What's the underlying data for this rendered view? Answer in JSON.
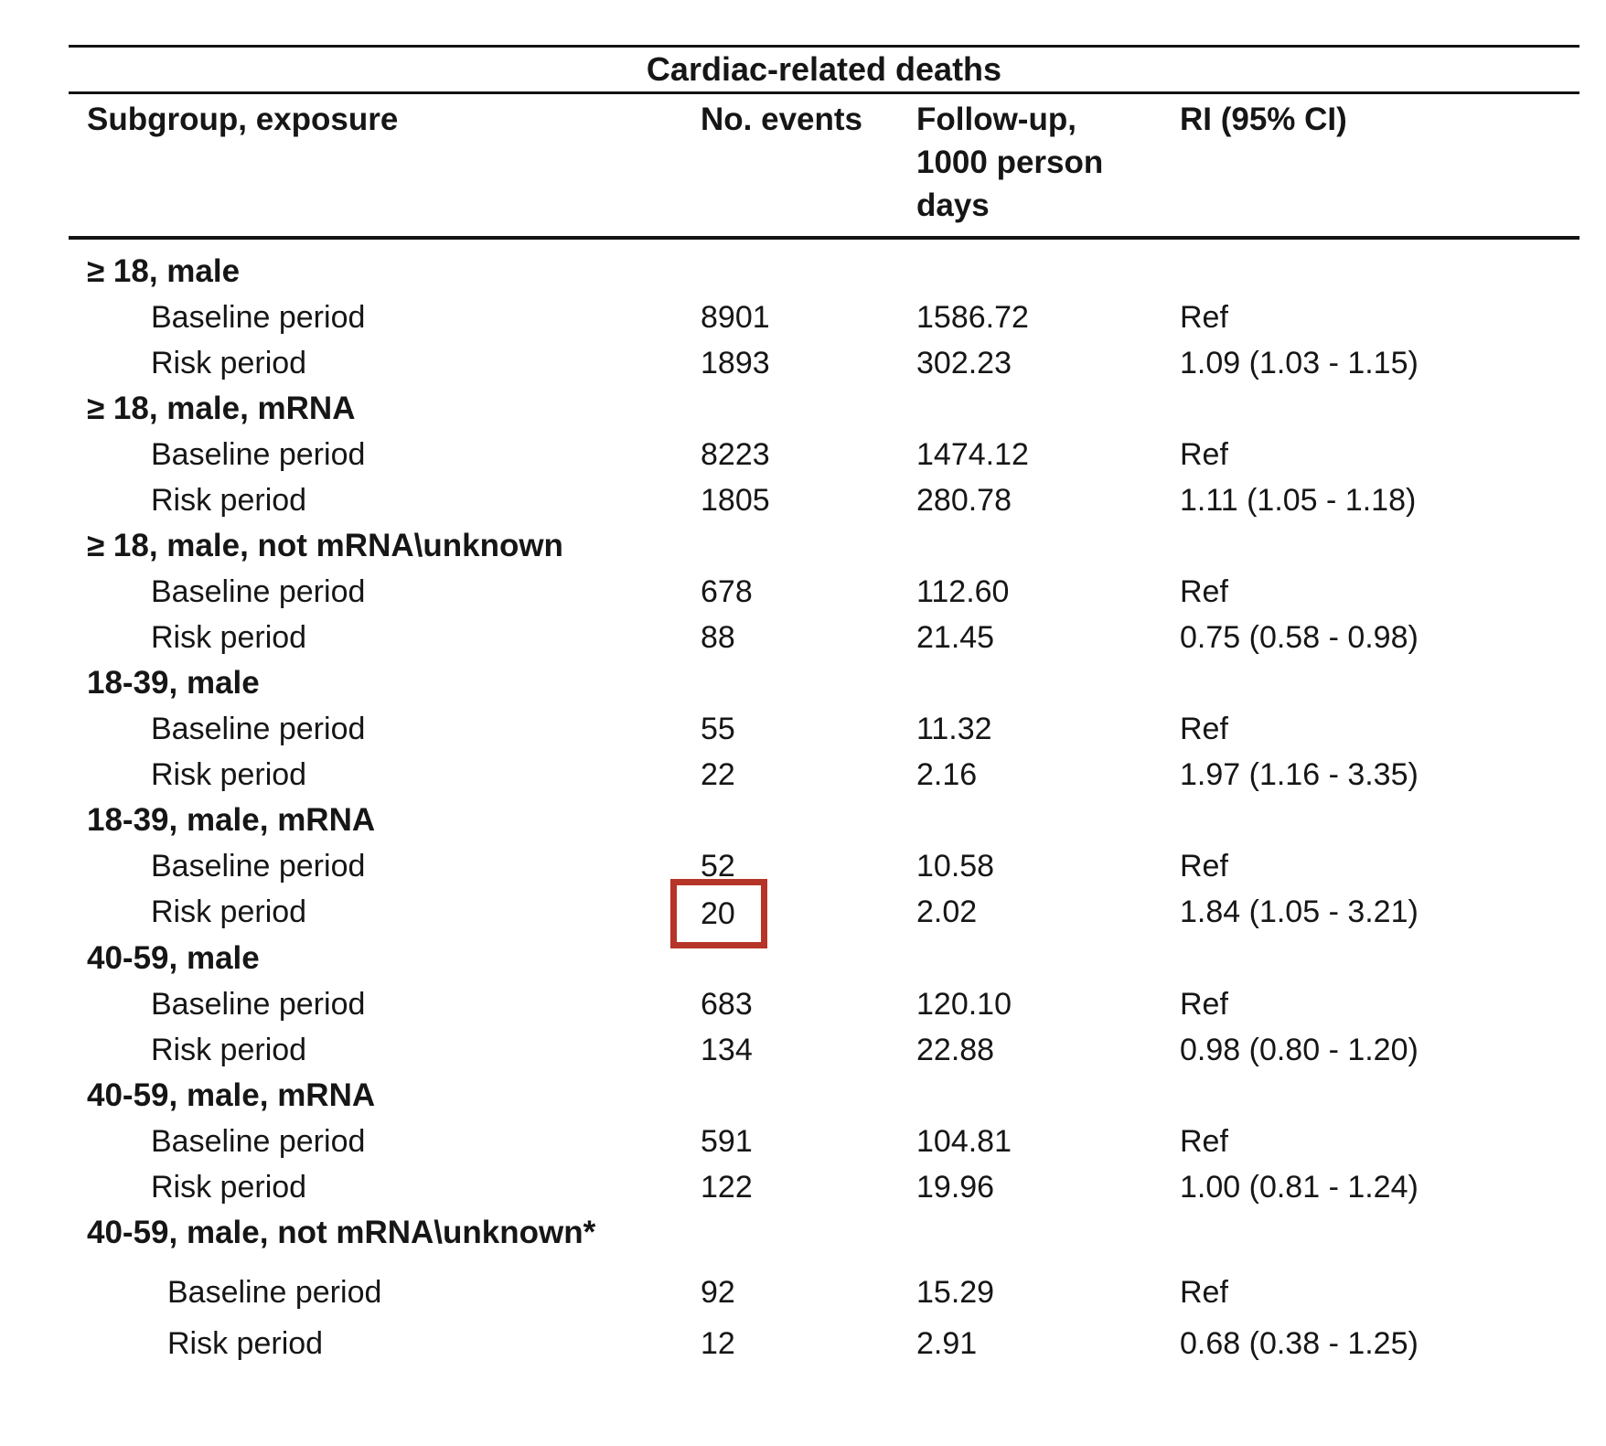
{
  "table": {
    "title": "Cardiac-related deaths",
    "columns": {
      "subgroup": "Subgroup, exposure",
      "events": "No. events",
      "followup": "Follow-up,\n1000 person\ndays",
      "ri": "RI (95% CI)"
    },
    "highlight_color": "#b63428",
    "groups": [
      {
        "label": "≥ 18, male",
        "rows": [
          {
            "exposure": "Baseline period",
            "events": "8901",
            "followup": "1586.72",
            "ri": "Ref"
          },
          {
            "exposure": "Risk period",
            "events": "1893",
            "followup": "302.23",
            "ri": "1.09 (1.03 - 1.15)"
          }
        ]
      },
      {
        "label": "≥ 18, male, mRNA",
        "rows": [
          {
            "exposure": "Baseline period",
            "events": "8223",
            "followup": "1474.12",
            "ri": "Ref"
          },
          {
            "exposure": "Risk period",
            "events": "1805",
            "followup": "280.78",
            "ri": "1.11 (1.05 - 1.18)"
          }
        ]
      },
      {
        "label": "≥ 18, male, not mRNA\\unknown",
        "rows": [
          {
            "exposure": "Baseline period",
            "events": "678",
            "followup": "112.60",
            "ri": "Ref"
          },
          {
            "exposure": "Risk period",
            "events": "88",
            "followup": "21.45",
            "ri": "0.75 (0.58 - 0.98)"
          }
        ]
      },
      {
        "label": "18-39, male",
        "rows": [
          {
            "exposure": "Baseline period",
            "events": "55",
            "followup": "11.32",
            "ri": "Ref"
          },
          {
            "exposure": "Risk period",
            "events": "22",
            "followup": "2.16",
            "ri": "1.97 (1.16 - 3.35)"
          }
        ]
      },
      {
        "label": "18-39, male, mRNA",
        "rows": [
          {
            "exposure": "Baseline period",
            "events": "52",
            "followup": "10.58",
            "ri": "Ref"
          },
          {
            "exposure": "Risk period",
            "events": "20",
            "events_highlight": true,
            "followup": "2.02",
            "ri": "1.84 (1.05 - 3.21)"
          }
        ]
      },
      {
        "label": "40-59, male",
        "rows": [
          {
            "exposure": "Baseline period",
            "events": "683",
            "followup": "120.10",
            "ri": "Ref"
          },
          {
            "exposure": "Risk period",
            "events": "134",
            "followup": "22.88",
            "ri": "0.98 (0.80 - 1.20)"
          }
        ]
      },
      {
        "label": "40-59, male, mRNA",
        "rows": [
          {
            "exposure": "Baseline period",
            "events": "591",
            "followup": "104.81",
            "ri": "Ref"
          },
          {
            "exposure": "Risk period",
            "events": "122",
            "followup": "19.96",
            "ri": "1.00 (0.81 - 1.24)"
          }
        ]
      },
      {
        "label": "40-59, male, not mRNA\\unknown*",
        "rows": [
          {
            "exposure": "Baseline period",
            "events": "92",
            "followup": "15.29",
            "ri": "Ref"
          },
          {
            "exposure": "Risk period",
            "events": "12",
            "followup": "2.91",
            "ri": "0.68 (0.38 - 1.25)"
          }
        ]
      }
    ]
  }
}
